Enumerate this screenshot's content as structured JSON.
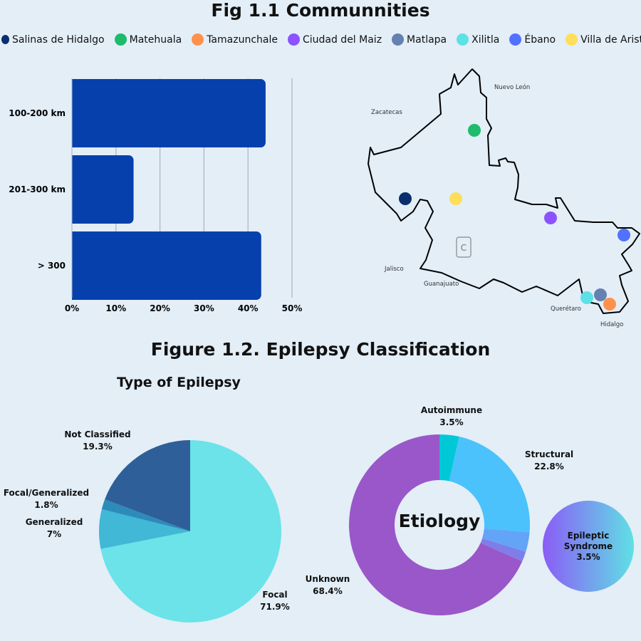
{
  "fig1_title": "Fig 1.1 Communnities",
  "legend": [
    {
      "label": "Salinas de Hidalgo",
      "color": "#0a2e6e"
    },
    {
      "label": "Matehuala",
      "color": "#1dbb6b"
    },
    {
      "label": "Tamazunchale",
      "color": "#ff914d"
    },
    {
      "label": "Ciudad del Maiz",
      "color": "#8c52ff"
    },
    {
      "label": "Matlapa",
      "color": "#6481b0"
    },
    {
      "label": "Xilitla",
      "color": "#5ce1e6"
    },
    {
      "label": "Ébano",
      "color": "#5271ff"
    },
    {
      "label": "Villa de Arista",
      "color": "#ffde59"
    }
  ],
  "map_labels": {
    "nuevo_leon": "Nuevo León",
    "zacatecas": "Zacatecas",
    "jalisco": "Jalisco",
    "guanajuato": "Guanajuato",
    "queretaro": "Querétaro",
    "hidalgo": "Hidalgo"
  },
  "fig2_title": "Figure 1.2. Epilepsy Classification",
  "chart_data": [
    {
      "type": "bar",
      "orientation": "horizontal",
      "categories": [
        "100-200 km",
        "201-300 km",
        "> 300"
      ],
      "values": [
        44,
        14,
        43
      ],
      "xlim": [
        0,
        50
      ],
      "xticks": [
        "0%",
        "10%",
        "20%",
        "30%",
        "40%",
        "50%"
      ],
      "grid": true,
      "color": "#0540ad"
    },
    {
      "type": "pie",
      "title": "Type of Epilepsy",
      "slices": [
        {
          "label": "Focal",
          "value": 71.9,
          "display": "71.9%",
          "color": "#6be3e8"
        },
        {
          "label": "Generalized",
          "value": 7,
          "display": "7%",
          "color": "#41b8d5"
        },
        {
          "label": "Focal/Generalized",
          "value": 1.8,
          "display": "1.8%",
          "color": "#2d8bba"
        },
        {
          "label": "Not Classified",
          "value": 19.3,
          "display": "19.3%",
          "color": "#2f5f98"
        }
      ]
    },
    {
      "type": "pie",
      "subtype": "donut",
      "title": "Etiology",
      "slices": [
        {
          "label": "Autoimmune",
          "value": 3.5,
          "display": "3.5%",
          "color": "#00c8d7"
        },
        {
          "label": "Structural",
          "value": 22.8,
          "display": "22.8%",
          "color": "#4bc2fb"
        },
        {
          "label": "Epileptic Syndrome",
          "value": 3.5,
          "display": "3.5%",
          "color": "#63a4f7"
        },
        {
          "label": "",
          "value": 1.8,
          "display": "",
          "color": "#7f7ee8"
        },
        {
          "label": "Unknown",
          "value": 68.4,
          "display": "68.4%",
          "color": "#9a57c9"
        }
      ]
    }
  ]
}
